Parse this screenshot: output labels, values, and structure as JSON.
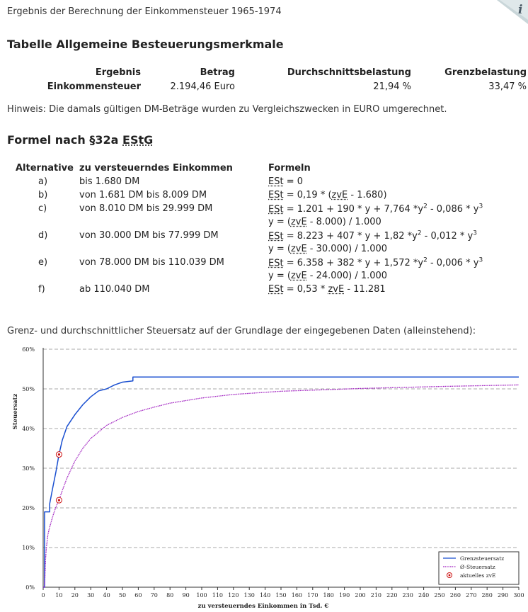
{
  "page": {
    "heading": "Ergebnis der Berechnung der Einkommensteuer 1965-1974",
    "info_icon": "i"
  },
  "table1": {
    "title": "Tabelle Allgemeine Besteuerungsmerkmale",
    "headers": [
      "Ergebnis",
      "Betrag",
      "Durchschnittsbelastung",
      "Grenzbelastung"
    ],
    "row": [
      "Einkommensteuer",
      "2.194,46 Euro",
      "21,94 %",
      "33,47 %"
    ]
  },
  "hint": "Hinweis: Die damals gültigen DM-Beträge wurden zu Vergleichszwecken in EURO umgerechnet.",
  "formula_section": {
    "title_prefix": "Formel nach §32a ",
    "title_abbr": "EStG",
    "headers": [
      "Alternative",
      "zu versteuerndes Einkommen",
      "Formeln"
    ],
    "rows": [
      {
        "alt": "a)",
        "income": "bis 1.680 DM",
        "lines": [
          {
            "abbr": "ESt",
            "text": " = 0"
          }
        ]
      },
      {
        "alt": "b)",
        "income": "von 1.681 DM bis 8.009 DM",
        "lines": [
          {
            "abbr": "ESt",
            "text": " = 0,19 * (",
            "abbr2": "zvE",
            "text2": " - 1.680)"
          }
        ]
      },
      {
        "alt": "c)",
        "income": "von 8.010 DM bis 29.999 DM",
        "lines": [
          {
            "abbr": "ESt",
            "text": " = 1.201 + 190 * y + 7,764 *y² - 0,086 * y³"
          },
          {
            "abbr": "",
            "text": "y = (",
            "abbr2": "zvE",
            "text2": " - 8.000) / 1.000"
          }
        ]
      },
      {
        "alt": "d)",
        "income": "von 30.000 DM bis 77.999 DM",
        "lines": [
          {
            "abbr": "ESt",
            "text": " = 8.223 + 407 * y + 1,82 *y² - 0,012 * y³"
          },
          {
            "abbr": "",
            "text": "y = (",
            "abbr2": "zvE",
            "text2": " - 30.000) / 1.000"
          }
        ]
      },
      {
        "alt": "e)",
        "income": "von 78.000 DM bis 110.039 DM",
        "lines": [
          {
            "abbr": "ESt",
            "text": " = 6.358 + 382 * y + 1,572 *y² - 0,006 * y³"
          },
          {
            "abbr": "",
            "text": "y = (",
            "abbr2": "zvE",
            "text2": " - 24.000) / 1.000"
          }
        ]
      },
      {
        "alt": "f)",
        "income": "ab 110.040 DM",
        "lines": [
          {
            "abbr": "ESt",
            "text": " = 0,53 * ",
            "abbr2": "zvE",
            "text2": " - 11.281"
          }
        ]
      }
    ]
  },
  "chart_caption": "Grenz- und durchschnittlicher Steuersatz auf der Grundlage der eingegebenen Daten (alleinstehend):",
  "chart_data": {
    "type": "line",
    "xlabel": "zu versteuerndes Einkommen in Tsd. €",
    "ylabel": "Steuersatz",
    "xlim": [
      0,
      300
    ],
    "ylim": [
      0,
      60
    ],
    "x_ticks": [
      0,
      10,
      20,
      30,
      40,
      50,
      60,
      70,
      80,
      90,
      100,
      110,
      120,
      130,
      140,
      150,
      160,
      170,
      180,
      190,
      200,
      210,
      220,
      230,
      240,
      250,
      260,
      270,
      280,
      290,
      300
    ],
    "y_ticks": [
      {
        "value": 0,
        "label": "0%"
      },
      {
        "value": 10,
        "label": "10%"
      },
      {
        "value": 20,
        "label": "20%"
      },
      {
        "value": 30,
        "label": "30%"
      },
      {
        "value": 40,
        "label": "40%"
      },
      {
        "value": 50,
        "label": "50%"
      },
      {
        "value": 60,
        "label": "60%"
      }
    ],
    "grid": "horizontal-dashed",
    "legend_position": "bottom-right",
    "series": [
      {
        "name": "Grenzsteuersatz",
        "color": "#1a4fd0",
        "style": "solid",
        "points": [
          [
            0,
            0
          ],
          [
            0.86,
            0
          ],
          [
            0.86,
            19
          ],
          [
            4.1,
            19
          ],
          [
            4.1,
            21
          ],
          [
            6,
            25
          ],
          [
            8,
            29
          ],
          [
            10,
            33.5
          ],
          [
            12,
            37
          ],
          [
            15,
            40.5
          ],
          [
            20,
            43.5
          ],
          [
            25,
            46
          ],
          [
            30,
            48
          ],
          [
            35,
            49.5
          ],
          [
            40,
            50
          ],
          [
            45,
            51
          ],
          [
            50,
            51.7
          ],
          [
            56.6,
            52
          ],
          [
            56.6,
            53
          ],
          [
            300,
            53
          ]
        ]
      },
      {
        "name": "Ø-Steuersatz",
        "color": "#a020c0",
        "style": "dotted",
        "points": [
          [
            0,
            0
          ],
          [
            0.86,
            0
          ],
          [
            1.5,
            7
          ],
          [
            2,
            9.9
          ],
          [
            3,
            13.3
          ],
          [
            4,
            15
          ],
          [
            6,
            17.8
          ],
          [
            8,
            20.2
          ],
          [
            10,
            22
          ],
          [
            12,
            24.3
          ],
          [
            15,
            27.5
          ],
          [
            20,
            31.8
          ],
          [
            25,
            35
          ],
          [
            30,
            37.5
          ],
          [
            40,
            40.8
          ],
          [
            50,
            42.8
          ],
          [
            60,
            44.3
          ],
          [
            70,
            45.4
          ],
          [
            80,
            46.4
          ],
          [
            100,
            47.7
          ],
          [
            120,
            48.6
          ],
          [
            150,
            49.4
          ],
          [
            200,
            50.1
          ],
          [
            250,
            50.6
          ],
          [
            300,
            51
          ]
        ]
      }
    ],
    "markers": {
      "name": "aktuelles zvE",
      "color": "#cc1111",
      "points": [
        [
          10,
          33.47
        ],
        [
          10,
          21.94
        ]
      ]
    }
  }
}
